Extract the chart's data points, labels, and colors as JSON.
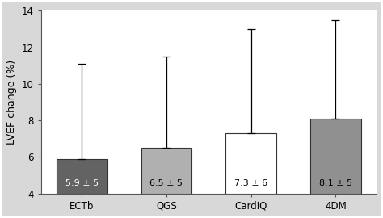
{
  "categories": [
    "ECTb",
    "QGS",
    "CardIQ",
    "4DM"
  ],
  "values": [
    5.9,
    6.5,
    7.3,
    8.1
  ],
  "errors_upper": [
    5.2,
    5.0,
    5.7,
    5.4
  ],
  "bar_colors": [
    "#636363",
    "#b0b0b0",
    "#ffffff",
    "#909090"
  ],
  "bar_edgecolors": [
    "#333333",
    "#333333",
    "#333333",
    "#333333"
  ],
  "labels": [
    "5.9 ± 5",
    "6.5 ± 5",
    "7.3 ± 6",
    "8.1 ± 5"
  ],
  "ylabel": "LVEF change (%)",
  "ylim": [
    4,
    14
  ],
  "yticks": [
    4,
    6,
    8,
    10,
    12,
    14
  ],
  "background_color": "#ffffff",
  "figure_facecolor": "#d8d8d8",
  "bar_width": 0.6,
  "label_fontsize": 8,
  "axis_fontsize": 9,
  "tick_fontsize": 8.5
}
